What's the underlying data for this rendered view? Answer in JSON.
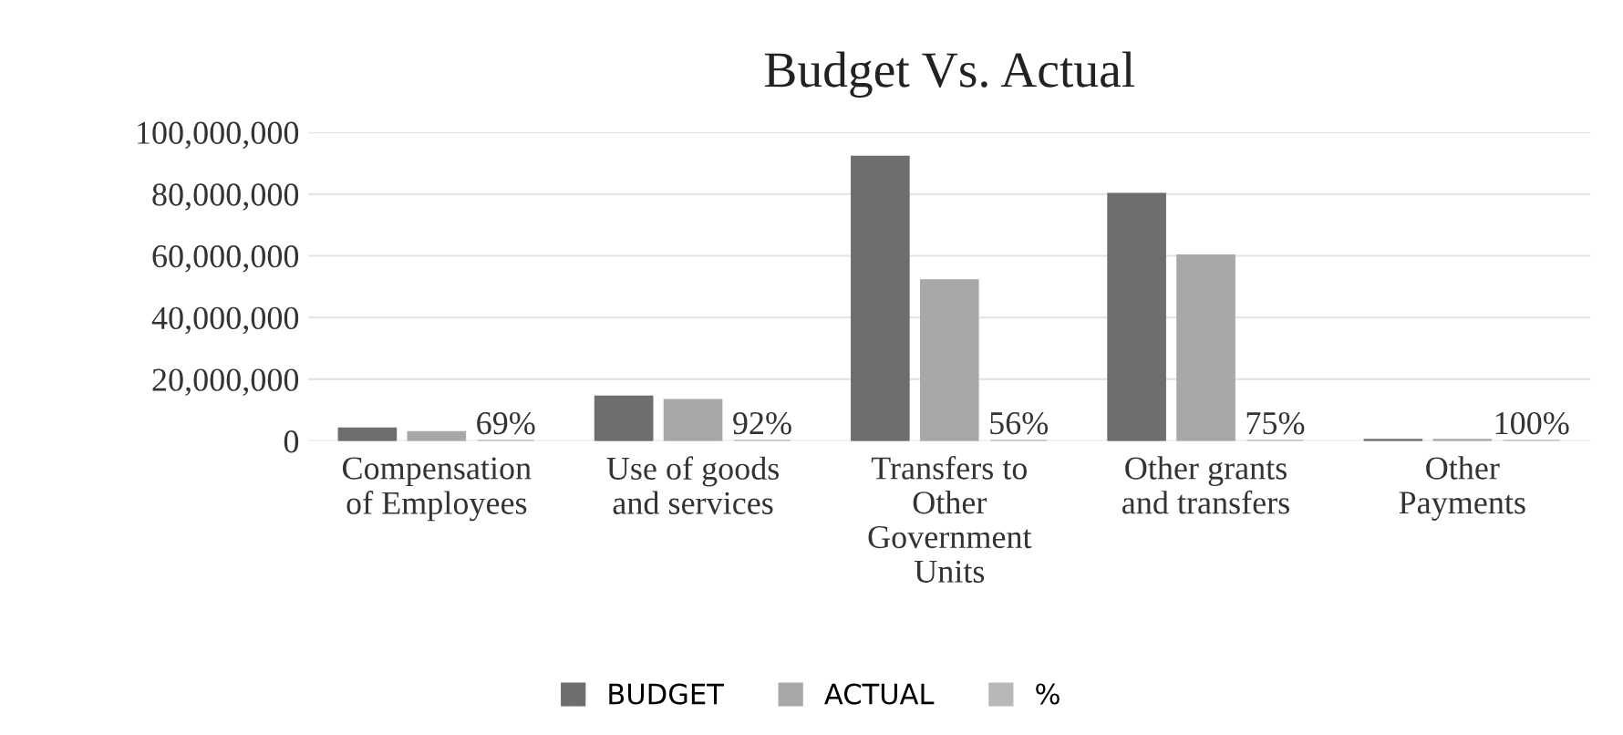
{
  "chart_data": {
    "type": "bar",
    "title": "Budget Vs. Actual",
    "categories": [
      "Compensation\nof Employees",
      "Use of goods\nand services",
      "Transfers to\nOther\nGovernment\nUnits",
      "Other grants\nand transfers",
      "Other\nPayments"
    ],
    "series": [
      {
        "name": "BUDGET",
        "color": "#6e6e6e",
        "values": [
          4000000,
          14300000,
          92000000,
          80000000,
          300000
        ]
      },
      {
        "name": "ACTUAL",
        "color": "#a8a8a8",
        "values": [
          2800000,
          13200000,
          52000000,
          60000000,
          300000
        ]
      },
      {
        "name": "%",
        "color": "#b8b8b8",
        "values": [
          0.69,
          0.92,
          0.56,
          0.75,
          1
        ],
        "value_labels": [
          "69%",
          "92%",
          "56%",
          "75%",
          "100%"
        ]
      }
    ],
    "ylim": [
      0,
      100000000
    ],
    "yticks": [
      {
        "value": 0,
        "label": "0"
      },
      {
        "value": 20000000,
        "label": "20,000,000"
      },
      {
        "value": 40000000,
        "label": "40,000,000"
      },
      {
        "value": 60000000,
        "label": "60,000,000"
      },
      {
        "value": 80000000,
        "label": "80,000,000"
      },
      {
        "value": 100000000,
        "label": "100,000,000"
      }
    ],
    "grid": "y",
    "legend": "bottom"
  }
}
